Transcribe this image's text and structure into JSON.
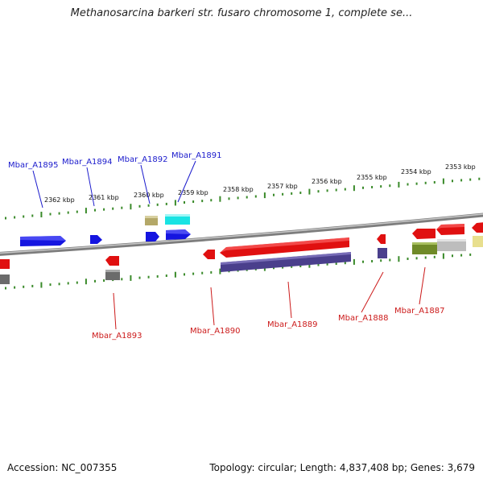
{
  "title": "Methanosarcina barkeri str. fusaro chromosome 1, complete se...",
  "footer": {
    "accession": "Accession: NC_007355",
    "summary": "Topology: circular; Length: 4,837,408 bp; Genes: 3,679"
  },
  "scale_labels": [
    "2362 kbp",
    "2361 kbp",
    "2360 kbp",
    "2359 kbp",
    "2358 kbp",
    "2357 kbp",
    "2356 kbp",
    "2355 kbp",
    "2354 kbp",
    "2353 kbp"
  ],
  "genes_top": [
    "Mbar_A1895",
    "Mbar_A1894",
    "Mbar_A1892",
    "Mbar_A1891"
  ],
  "genes_bottom": [
    "Mbar_A1893",
    "Mbar_A1890",
    "Mbar_A1889",
    "Mbar_A1888",
    "Mbar_A1887"
  ],
  "colors": {
    "backbone": "#8a8a8a",
    "ticks": "#3a8a2a",
    "forward_gene": "#1515e0",
    "reverse_gene": "#e01010",
    "forward_label": "#1a1acc",
    "reverse_label": "#cc1a1a",
    "cds_purple": "#4a3f8c",
    "cds_gray": "#6b6b6b",
    "cds_olive": "#b4a868",
    "cds_cyan": "#19e3e3",
    "cds_green": "#6f8a28",
    "cds_silver": "#bdbdbd",
    "cds_yellow": "#e8df8e"
  }
}
